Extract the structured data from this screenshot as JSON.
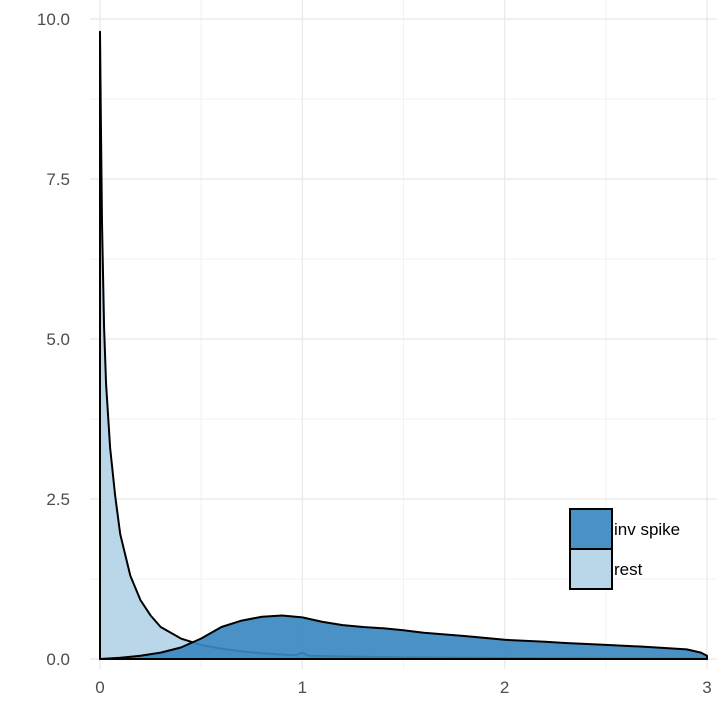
{
  "chart_data": {
    "type": "area",
    "title": "",
    "xlabel": "",
    "ylabel": "",
    "xlim": [
      0,
      3
    ],
    "ylim": [
      0,
      10
    ],
    "x_ticks": [
      0,
      1,
      2,
      3
    ],
    "x_tick_labels": [
      "0",
      "1",
      "2",
      "3"
    ],
    "y_ticks": [
      0,
      2.5,
      5,
      7.5,
      10
    ],
    "y_tick_labels": [
      "0.0",
      "2.5",
      "5.0",
      "7.5",
      "10.0"
    ],
    "grid": true,
    "legend_position": "bottom-right",
    "series": [
      {
        "name": "rest",
        "color": "#b3d4e6",
        "points": [
          [
            0.0,
            9.8
          ],
          [
            0.005,
            8.2
          ],
          [
            0.01,
            6.8
          ],
          [
            0.02,
            5.2
          ],
          [
            0.03,
            4.3
          ],
          [
            0.05,
            3.3
          ],
          [
            0.075,
            2.55
          ],
          [
            0.1,
            1.95
          ],
          [
            0.15,
            1.3
          ],
          [
            0.2,
            0.92
          ],
          [
            0.25,
            0.68
          ],
          [
            0.3,
            0.5
          ],
          [
            0.4,
            0.32
          ],
          [
            0.5,
            0.22
          ],
          [
            0.6,
            0.16
          ],
          [
            0.7,
            0.12
          ],
          [
            0.8,
            0.09
          ],
          [
            0.9,
            0.07
          ],
          [
            0.97,
            0.06
          ],
          [
            1.0,
            0.1
          ],
          [
            1.03,
            0.05
          ],
          [
            1.2,
            0.04
          ],
          [
            1.5,
            0.025
          ],
          [
            2.0,
            0.015
          ],
          [
            2.5,
            0.008
          ],
          [
            3.0,
            0.004
          ]
        ]
      },
      {
        "name": "inv spike",
        "color": "#3b88c0",
        "points": [
          [
            0.0,
            0.0
          ],
          [
            0.1,
            0.02
          ],
          [
            0.2,
            0.05
          ],
          [
            0.3,
            0.1
          ],
          [
            0.4,
            0.18
          ],
          [
            0.5,
            0.32
          ],
          [
            0.6,
            0.5
          ],
          [
            0.7,
            0.6
          ],
          [
            0.8,
            0.66
          ],
          [
            0.9,
            0.68
          ],
          [
            1.0,
            0.65
          ],
          [
            1.1,
            0.58
          ],
          [
            1.2,
            0.53
          ],
          [
            1.3,
            0.5
          ],
          [
            1.4,
            0.48
          ],
          [
            1.5,
            0.45
          ],
          [
            1.6,
            0.41
          ],
          [
            1.8,
            0.36
          ],
          [
            2.0,
            0.3
          ],
          [
            2.2,
            0.27
          ],
          [
            2.3,
            0.25
          ],
          [
            2.5,
            0.22
          ],
          [
            2.7,
            0.19
          ],
          [
            2.9,
            0.15
          ],
          [
            2.97,
            0.1
          ],
          [
            3.0,
            0.05
          ]
        ]
      }
    ],
    "legend": [
      {
        "label": "inv spike",
        "color": "#3b88c0"
      },
      {
        "label": "rest",
        "color": "#b3d4e6"
      }
    ]
  }
}
